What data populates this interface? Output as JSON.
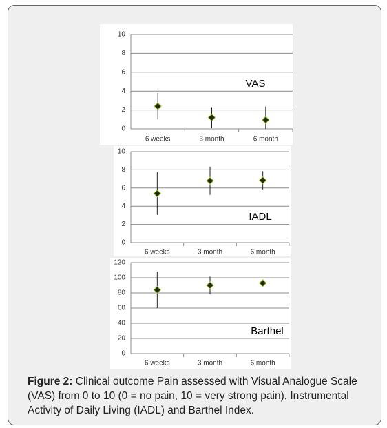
{
  "chart_data": [
    {
      "type": "errorbar",
      "annotation": "VAS",
      "categories": [
        "6 weeks",
        "3 month",
        "6 month"
      ],
      "values": [
        2.4,
        1.2,
        0.95
      ],
      "errors": [
        1.4,
        1.1,
        1.4
      ],
      "color": "#1f2a0a",
      "ylim": [
        0,
        10
      ],
      "yticks": [
        0,
        2,
        4,
        6,
        8,
        10
      ],
      "grid": true
    },
    {
      "type": "errorbar",
      "annotation": "IADL",
      "categories": [
        "6 weeks",
        "3 month",
        "6 month"
      ],
      "values": [
        5.4,
        6.8,
        6.85
      ],
      "errors": [
        2.35,
        1.55,
        1.0
      ],
      "color": "#1f2a0a",
      "ylim": [
        0,
        10
      ],
      "yticks": [
        0,
        2,
        4,
        6,
        8,
        10
      ],
      "grid": true
    },
    {
      "type": "errorbar",
      "annotation": "Barthel",
      "categories": [
        "6 weeks",
        "3 month",
        "6 month"
      ],
      "values": [
        84,
        90,
        93
      ],
      "errors": [
        24,
        11.5,
        2
      ],
      "color": "#1f2a0a",
      "ylim": [
        0,
        120
      ],
      "yticks": [
        0,
        20,
        40,
        60,
        80,
        100,
        120
      ],
      "grid": true
    }
  ],
  "caption": {
    "label": "Figure 2:",
    "text": "Clinical outcome Pain assessed with Visual Analogue Scale (VAS) from 0 to 10 (0 = no pain, 10 = very strong pain), Instrumental Activity of Daily Living (IADL) and Barthel Index."
  }
}
